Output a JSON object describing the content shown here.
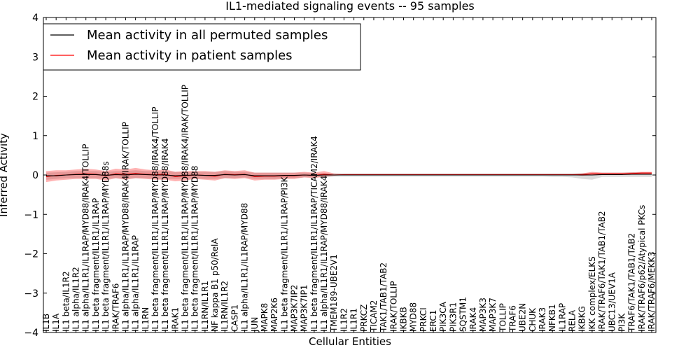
{
  "chart_data": {
    "type": "line",
    "title": "IL1-mediated signaling events -- 95 samples",
    "xlabel": "Cellular Entities",
    "ylabel": "Inferred Activity",
    "ylim": [
      -4,
      4
    ],
    "yticks": [
      -4,
      -3,
      -2,
      -1,
      0,
      1,
      2,
      3,
      4
    ],
    "ytick_labels": [
      "−4",
      "−3",
      "−2",
      "−1",
      "0",
      "1",
      "2",
      "3",
      "4"
    ],
    "grid": false,
    "legend_position": "top-left",
    "categories": [
      "IL1B",
      "IL1A",
      "IL1 beta/IL1R2",
      "IL1 alpha/IL1R2",
      "IL1 alpha/IL1R1/IL1RAP/MYD88/IRAK4/TOLLIP",
      "IL1 beta fragment/IL1R1/IL1RAP",
      "IL1 beta fragment/IL1R1/IL1RAP/MYD88s",
      "IRAK/TRAF6",
      "IL1 alpha/IL1R1/IL1RAP/MYD88/IRAK4/IRAK/TOLLIP",
      "IL1 alpha/IL1R1/IL1RAP",
      "IL1RN",
      "IL1 beta fragment/IL1R1/IL1RAP/MYD88/IRAK4/TOLLIP",
      "IL1 beta fragment/IL1R1/IL1RAP/MYD88/IRAK4",
      "IRAK1",
      "IL1 beta fragment/IL1R1/IL1RAP/MYD88/IRAK4/IRAK/TOLLIP",
      "IL1 beta fragment/IL1R1/IL1RAP/MYD88",
      "IL1RN/IL1R1",
      "NF kappa B1 p50/RelA",
      "IL1RN/IL1R2",
      "CASP1",
      "IL1 alpha/IL1R1/IL1RAP/MYD88",
      "JUN",
      "MAPK8",
      "MAP2K6",
      "IL1 beta fragment/IL1R1/IL1RAP/PI3K",
      "MAP3K7IP2",
      "MAP3K7IP1",
      "IL1 beta fragment/IL1R1/IL1RAP/TICAM2/IRAK4",
      "IL1 alpha/IL1R1/IL1RAP/MYD88/IRAK4",
      "TMEM189-UBE2V1",
      "IL1R2",
      "IL1R1",
      "PRKCZ",
      "TICAM2",
      "TAK1/TAB1/TAB2",
      "IRAK/TOLLIP",
      "IKBKB",
      "MYD88",
      "PRKCI",
      "ERC1",
      "PIK3CA",
      "PIK3R1",
      "SQSTM1",
      "IRAK4",
      "MAP3K3",
      "MAP3K7",
      "TOLLIP",
      "TRAF6",
      "UBE2N",
      "CHUK",
      "IRAK3",
      "NFKB1",
      "IL1RAP",
      "RELA",
      "IKBKG",
      "IKK complex/ELKS",
      "IRAK/TRAF6/TAK1/TAB1/TAB2",
      "UBC13/UEV1A",
      "PI3K",
      "TRAF6/TAK1/TAB1/TAB2",
      "IRAK/TRAF6/p62/Atypical PKCs",
      "IRAK/TRAF6/MEKK3"
    ],
    "series": [
      {
        "name": "Mean activity in all permuted samples",
        "color": "#000000",
        "values": [
          -0.02,
          -0.02,
          0.0,
          0.01,
          0.01,
          0.01,
          -0.01,
          0.01,
          0.0,
          0.02,
          0.01,
          0.0,
          0.0,
          -0.02,
          -0.01,
          0.0,
          -0.01,
          -0.01,
          0.01,
          0.0,
          0.01,
          -0.02,
          -0.02,
          -0.02,
          -0.01,
          -0.01,
          0.0,
          -0.01,
          0.0,
          0.0,
          0.0,
          0.0,
          0.0,
          0.0,
          0.0,
          0.0,
          0.0,
          0.0,
          0.0,
          0.0,
          0.0,
          0.0,
          0.0,
          0.0,
          0.0,
          0.0,
          0.0,
          0.0,
          0.0,
          0.0,
          0.0,
          0.0,
          0.0,
          0.0,
          0.0,
          0.0,
          0.01,
          0.01,
          0.01,
          0.02,
          0.02,
          0.02
        ],
        "band_low": [
          -0.12,
          -0.1,
          -0.08,
          -0.08,
          -0.08,
          -0.08,
          -0.1,
          -0.08,
          -0.1,
          -0.08,
          -0.08,
          -0.1,
          -0.1,
          -0.1,
          -0.1,
          -0.08,
          -0.1,
          -0.1,
          -0.08,
          -0.08,
          -0.06,
          -0.1,
          -0.1,
          -0.1,
          -0.08,
          -0.08,
          -0.06,
          -0.06,
          -0.06,
          -0.04,
          -0.04,
          -0.04,
          -0.04,
          -0.04,
          -0.04,
          -0.04,
          -0.04,
          -0.04,
          -0.04,
          -0.04,
          -0.04,
          -0.04,
          -0.04,
          -0.04,
          -0.04,
          -0.04,
          -0.04,
          -0.04,
          -0.04,
          -0.04,
          -0.04,
          -0.05,
          -0.05,
          -0.06,
          -0.1,
          -0.12,
          -0.05,
          -0.05,
          -0.05,
          -0.05,
          -0.05,
          -0.05
        ],
        "band_high": [
          0.06,
          0.07,
          0.08,
          0.1,
          0.1,
          0.1,
          0.08,
          0.1,
          0.1,
          0.12,
          0.1,
          0.1,
          0.1,
          0.08,
          0.08,
          0.08,
          0.08,
          0.08,
          0.1,
          0.08,
          0.08,
          0.06,
          0.06,
          0.06,
          0.06,
          0.06,
          0.06,
          0.05,
          0.05,
          0.04,
          0.04,
          0.04,
          0.04,
          0.04,
          0.04,
          0.04,
          0.04,
          0.04,
          0.04,
          0.04,
          0.04,
          0.04,
          0.04,
          0.04,
          0.04,
          0.04,
          0.04,
          0.04,
          0.04,
          0.04,
          0.04,
          0.04,
          0.04,
          0.04,
          0.05,
          0.06,
          0.06,
          0.06,
          0.06,
          0.07,
          0.07,
          0.07
        ]
      },
      {
        "name": "Mean activity in patient samples",
        "color": "#ff0000",
        "values": [
          -0.04,
          -0.01,
          0.0,
          0.02,
          0.03,
          0.02,
          -0.02,
          0.03,
          0.02,
          0.04,
          0.02,
          0.01,
          0.02,
          -0.04,
          -0.02,
          0.0,
          -0.01,
          -0.03,
          0.02,
          0.01,
          0.02,
          -0.04,
          -0.03,
          -0.03,
          -0.02,
          -0.02,
          0.0,
          -0.01,
          0.02,
          0.0,
          0.01,
          0.01,
          0.01,
          0.01,
          0.01,
          0.01,
          0.01,
          0.01,
          0.01,
          0.01,
          0.01,
          0.01,
          0.01,
          0.01,
          0.01,
          0.01,
          0.01,
          0.01,
          0.01,
          0.01,
          0.01,
          0.01,
          0.01,
          0.01,
          0.01,
          0.03,
          0.03,
          0.03,
          0.03,
          0.04,
          0.05,
          0.05
        ],
        "band_low": [
          -0.18,
          -0.14,
          -0.12,
          -0.1,
          -0.1,
          -0.1,
          -0.14,
          -0.08,
          -0.12,
          -0.08,
          -0.1,
          -0.12,
          -0.12,
          -0.16,
          -0.14,
          -0.1,
          -0.12,
          -0.14,
          -0.08,
          -0.1,
          -0.08,
          -0.14,
          -0.12,
          -0.12,
          -0.1,
          -0.1,
          -0.06,
          -0.08,
          -0.04,
          -0.02,
          0.0,
          0.0,
          0.0,
          0.0,
          0.0,
          0.0,
          0.0,
          0.0,
          0.0,
          0.0,
          0.0,
          0.0,
          0.0,
          0.0,
          0.0,
          0.0,
          0.0,
          0.0,
          0.0,
          0.0,
          0.0,
          0.0,
          0.0,
          0.0,
          -0.02,
          0.0,
          0.01,
          0.01,
          0.01,
          0.01,
          0.02,
          0.02
        ],
        "band_high": [
          0.1,
          0.12,
          0.12,
          0.14,
          0.16,
          0.14,
          0.1,
          0.16,
          0.14,
          0.18,
          0.14,
          0.12,
          0.14,
          0.08,
          0.1,
          0.1,
          0.1,
          0.08,
          0.12,
          0.1,
          0.12,
          0.06,
          0.06,
          0.06,
          0.06,
          0.06,
          0.08,
          0.06,
          0.1,
          0.04,
          0.02,
          0.02,
          0.02,
          0.02,
          0.02,
          0.02,
          0.02,
          0.02,
          0.02,
          0.02,
          0.02,
          0.02,
          0.02,
          0.02,
          0.02,
          0.02,
          0.02,
          0.02,
          0.02,
          0.02,
          0.02,
          0.02,
          0.02,
          0.02,
          0.04,
          0.08,
          0.06,
          0.06,
          0.06,
          0.07,
          0.08,
          0.08
        ]
      }
    ]
  }
}
